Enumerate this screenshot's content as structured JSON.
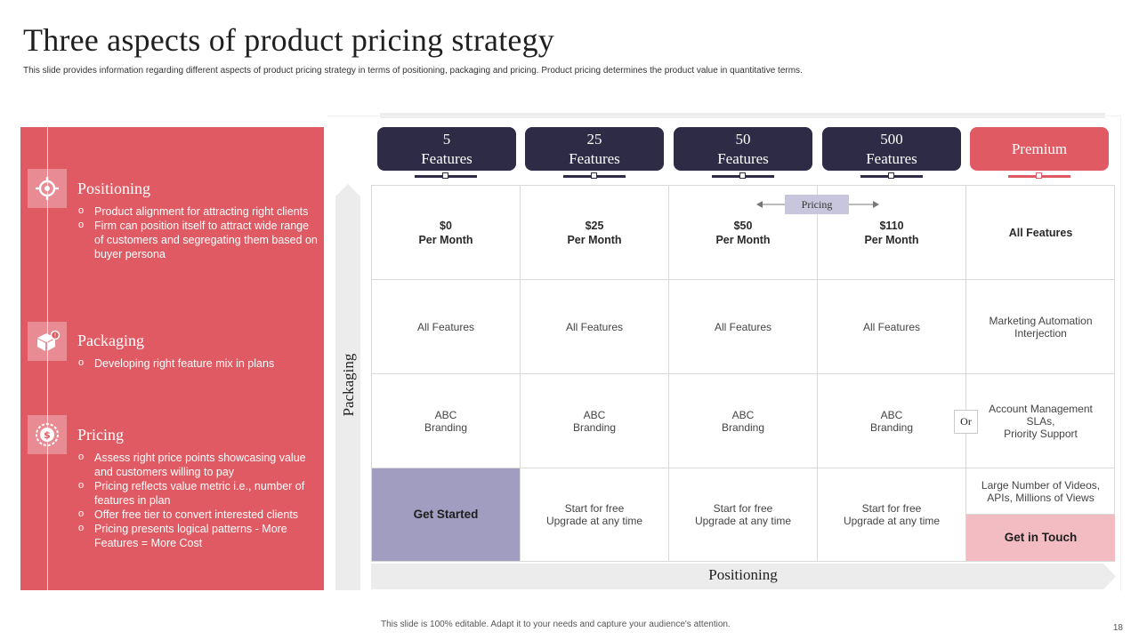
{
  "slide": {
    "title": "Three aspects of product pricing strategy",
    "subtitle": "This slide provides information regarding different aspects of product pricing strategy in terms of positioning,  packaging and pricing. Product pricing determines the product value in quantitative terms.",
    "footer": "This slide is 100% editable.  Adapt it to your needs and capture your audience's attention.",
    "page_number": "18"
  },
  "colors": {
    "accent_red": "#e05a63",
    "navy": "#2d2b45",
    "lavender": "#a09dc0",
    "pink": "#f2bcc2"
  },
  "left_panel": {
    "sections": [
      {
        "icon": "target-icon",
        "title": "Positioning",
        "bullets": [
          "Product alignment for attracting right clients",
          "Firm can position itself to attract wide range of customers and segregating them based on buyer persona"
        ]
      },
      {
        "icon": "package-icon",
        "title": "Packaging",
        "bullets": [
          "Developing  right feature mix in plans"
        ]
      },
      {
        "icon": "dollar-icon",
        "title": "Pricing",
        "bullets": [
          "Assess right price points showcasing value  and customers willing to pay",
          "Pricing reflects value  metric i.e., number of features in plan",
          "Offer free tier to convert interested clients",
          "Pricing presents logical patterns - More Features = More Cost"
        ]
      }
    ]
  },
  "plans": [
    {
      "line1": "5",
      "line2": "Features"
    },
    {
      "line1": "25",
      "line2": "Features"
    },
    {
      "line1": "50",
      "line2": "Features"
    },
    {
      "line1": "500",
      "line2": "Features"
    },
    {
      "line1": "Premium",
      "line2": ""
    }
  ],
  "axis": {
    "vertical": "Packaging",
    "horizontal": "Positioning",
    "pricing_tag": "Pricing",
    "or_label": "Or"
  },
  "grid": {
    "prices": [
      {
        "amount": "$0",
        "period": "Per Month"
      },
      {
        "amount": "$25",
        "period": "Per Month"
      },
      {
        "amount": "$50",
        "period": "Per Month"
      },
      {
        "amount": "$110",
        "period": "Per Month"
      },
      {
        "amount": "All Features",
        "period": ""
      }
    ],
    "features": [
      "All Features",
      "All Features",
      "All Features",
      "All Features",
      "Marketing Automation\nInterjection"
    ],
    "branding": [
      "ABC\nBranding",
      "ABC\nBranding",
      "ABC\nBranding",
      "ABC\nBranding",
      "Account Management\nSLAs,\nPriority Support"
    ],
    "cta": [
      "Get Started",
      "Start for free\nUpgrade at any time",
      "Start for free\nUpgrade at any time",
      "Start for free\nUpgrade at any time"
    ],
    "premium_cta": {
      "extra": "Large Number of Videos,\nAPIs, Millions of Views",
      "button": "Get in Touch"
    }
  }
}
